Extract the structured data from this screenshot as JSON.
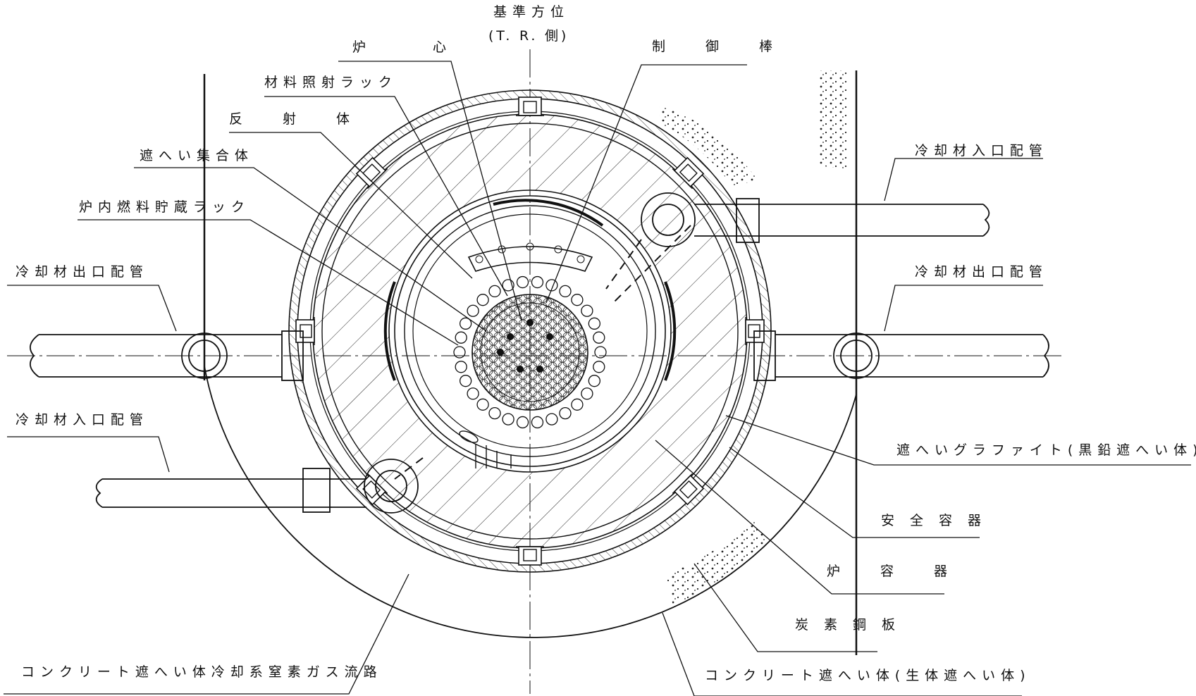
{
  "labels": {
    "reference_azimuth": "基準方位",
    "reference_azimuth_sub": "(T. R. 側)",
    "core": "炉　心",
    "control_rod": "制　御　棒",
    "material_irradiation_rack": "材料照射ラック",
    "reflector": "反　射　体",
    "shielding_assembly": "遮へい集合体",
    "in_vessel_fuel_storage_rack": "炉内燃料貯蔵ラック",
    "coolant_outlet_pipe_left": "冷却材出口配管",
    "coolant_inlet_pipe_left": "冷却材入口配管",
    "coolant_inlet_pipe_right": "冷却材入口配管",
    "coolant_outlet_pipe_right": "冷却材出口配管",
    "shielding_graphite": "遮へいグラファイト(黒鉛遮へい体)",
    "safety_vessel": "安 全 容 器",
    "reactor_vessel": "炉　容　器",
    "carbon_steel_plate": "炭 素 鋼 板",
    "concrete_shield_cooling_path": "コンクリート遮へい体冷却系窒素ガス流路",
    "concrete_shield": "コンクリート遮へい体(生体遮へい体)"
  }
}
